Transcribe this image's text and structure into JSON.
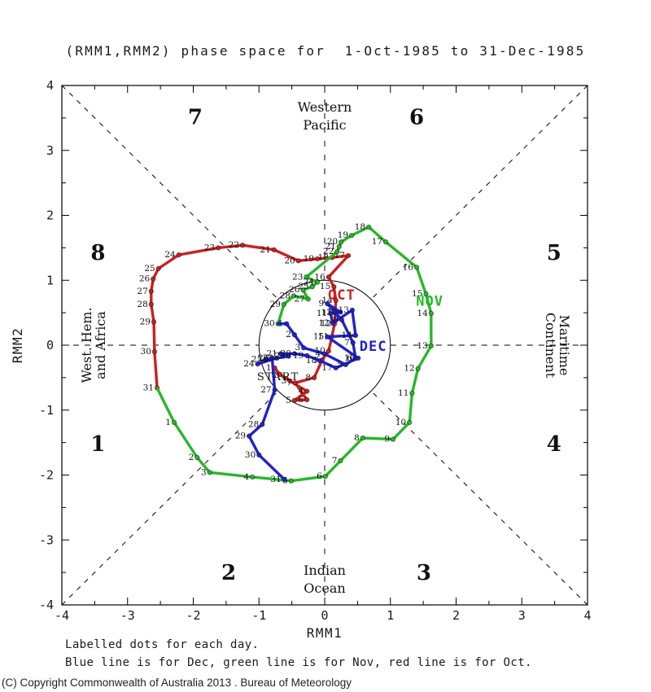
{
  "title": "(RMM1,RMM2) phase space for  1-Oct-1985 to 31-Dec-1985",
  "footer": {
    "line1": "Labelled dots for each day.",
    "line2": "Blue line is for Dec, green line is for Nov, red line is for Oct."
  },
  "copyright": "(C) Copyright Commonwealth of Australia 2013 . Bureau of Meteorology",
  "chart_data": {
    "type": "line",
    "title": "(RMM1,RMM2) phase space for 1-Oct-1985 to 31-Dec-1985",
    "xlabel": "RMM1",
    "ylabel": "RMM2",
    "xlim": [
      -4,
      4
    ],
    "ylim": [
      -4,
      4
    ],
    "xticks": [
      -4,
      -3,
      -2,
      -1,
      0,
      1,
      2,
      3,
      4
    ],
    "yticks": [
      -4,
      -3,
      -2,
      -1,
      0,
      1,
      2,
      3,
      4
    ],
    "minor_tick_step": 0.5,
    "grid": false,
    "unit_circle_radius": 1,
    "colors": {
      "oct": "#cc2020",
      "nov": "#28b828",
      "dec": "#2222cc",
      "axis": "#000000",
      "daytext": "#111111"
    },
    "phase_labels": [
      {
        "n": "1",
        "x": -3.45,
        "y": -1.52
      },
      {
        "n": "2",
        "x": -1.46,
        "y": -3.5
      },
      {
        "n": "3",
        "x": 1.51,
        "y": -3.5
      },
      {
        "n": "4",
        "x": 3.49,
        "y": -1.52
      },
      {
        "n": "5",
        "x": 3.49,
        "y": 1.43
      },
      {
        "n": "6",
        "x": 1.4,
        "y": 3.52
      },
      {
        "n": "7",
        "x": -1.97,
        "y": 3.52
      },
      {
        "n": "8",
        "x": -3.45,
        "y": 1.43
      }
    ],
    "region_labels": {
      "top": [
        "Western",
        "Pacific"
      ],
      "bottom": [
        "Indian",
        "Ocean"
      ],
      "left": [
        "West. Hem.",
        "and Africa"
      ],
      "right": [
        "Maritime",
        "Continent"
      ]
    },
    "start_label": {
      "text": "START",
      "x": -1.03,
      "y": -0.54
    },
    "series": [
      {
        "name": "Oct",
        "color": "#cc2020",
        "tag": {
          "text": "OCT",
          "x": 0.05,
          "y": 0.7
        },
        "points": [
          [
            1,
            -0.76,
            -0.35
          ],
          [
            2,
            -0.68,
            -0.45
          ],
          [
            3,
            -0.53,
            -0.55
          ],
          [
            4,
            -0.27,
            -0.71
          ],
          [
            5,
            -0.46,
            -0.85
          ],
          [
            6,
            -0.27,
            -0.84
          ],
          [
            7,
            -0.45,
            -0.58
          ],
          [
            8,
            -0.16,
            -0.5
          ],
          [
            9,
            -0.04,
            -0.23
          ],
          [
            10,
            0.06,
            -0.09
          ],
          [
            11,
            0.11,
            0.13
          ],
          [
            12,
            0.15,
            0.33
          ],
          [
            13,
            0.16,
            0.5
          ],
          [
            14,
            0.17,
            0.69
          ],
          [
            15,
            0.14,
            0.9
          ],
          [
            16,
            0.06,
            1.05
          ],
          [
            17,
            0.36,
            1.38
          ],
          [
            18,
            0.11,
            1.35
          ],
          [
            19,
            -0.11,
            1.33
          ],
          [
            20,
            -0.4,
            1.3
          ],
          [
            21,
            -0.77,
            1.47
          ],
          [
            22,
            -1.25,
            1.54
          ],
          [
            23,
            -1.62,
            1.5
          ],
          [
            24,
            -2.22,
            1.39
          ],
          [
            25,
            -2.53,
            1.18
          ],
          [
            26,
            -2.61,
            1.02
          ],
          [
            27,
            -2.64,
            0.83
          ],
          [
            28,
            -2.64,
            0.63
          ],
          [
            29,
            -2.6,
            0.36
          ],
          [
            30,
            -2.59,
            -0.1
          ],
          [
            31,
            -2.55,
            -0.66
          ]
        ]
      },
      {
        "name": "Nov",
        "color": "#28b828",
        "tag": {
          "text": "NOV",
          "x": 1.39,
          "y": 0.61
        },
        "points": [
          [
            1,
            -2.29,
            -1.19
          ],
          [
            2,
            -1.94,
            -1.73
          ],
          [
            3,
            -1.75,
            -1.96
          ],
          [
            4,
            -1.1,
            -2.03
          ],
          [
            5,
            -0.51,
            -2.09
          ],
          [
            6,
            0.01,
            -2.02
          ],
          [
            7,
            0.24,
            -1.78
          ],
          [
            8,
            0.58,
            -1.43
          ],
          [
            9,
            1.04,
            -1.45
          ],
          [
            10,
            1.29,
            -1.19
          ],
          [
            11,
            1.33,
            -0.74
          ],
          [
            12,
            1.42,
            -0.36
          ],
          [
            13,
            1.62,
            -0.01
          ],
          [
            14,
            1.62,
            0.49
          ],
          [
            15,
            1.54,
            0.79
          ],
          [
            16,
            1.4,
            1.2
          ],
          [
            17,
            0.93,
            1.59
          ],
          [
            18,
            0.67,
            1.82
          ],
          [
            19,
            0.41,
            1.69
          ],
          [
            20,
            0.25,
            1.59
          ],
          [
            21,
            0.22,
            1.52
          ],
          [
            22,
            0.19,
            1.44
          ],
          [
            23,
            -0.28,
            1.05
          ],
          [
            24,
            -0.11,
            0.97
          ],
          [
            25,
            -0.19,
            0.9
          ],
          [
            26,
            -0.33,
            0.85
          ],
          [
            27,
            -0.25,
            0.71
          ],
          [
            28,
            -0.47,
            0.76
          ],
          [
            29,
            -0.62,
            0.63
          ],
          [
            30,
            -0.71,
            0.33
          ]
        ]
      },
      {
        "name": "Dec",
        "color": "#2222cc",
        "tag": {
          "text": "DEC",
          "x": 0.53,
          "y": -0.09
        },
        "points": [
          [
            1,
            -0.58,
            0.33
          ],
          [
            2,
            -0.46,
            0.16
          ],
          [
            3,
            -0.32,
            -0.04
          ],
          [
            4,
            -0.01,
            -0.13
          ],
          [
            5,
            0.32,
            -0.3
          ],
          [
            6,
            0.47,
            -0.2
          ],
          [
            7,
            0.43,
            0.04
          ],
          [
            8,
            0.26,
            0.39
          ],
          [
            9,
            0.04,
            0.64
          ],
          [
            10,
            0.24,
            0.51
          ],
          [
            11,
            0.09,
            0.49
          ],
          [
            12,
            0.12,
            0.34
          ],
          [
            13,
            0.42,
            0.54
          ],
          [
            14,
            0.47,
            0.15
          ],
          [
            15,
            0.04,
            0.13
          ],
          [
            16,
            0.51,
            -0.2
          ],
          [
            17,
            0.17,
            -0.35
          ],
          [
            18,
            -0.07,
            -0.24
          ],
          [
            19,
            -0.27,
            -0.16
          ],
          [
            20,
            -0.46,
            -0.13
          ],
          [
            21,
            -0.67,
            -0.13
          ],
          [
            22,
            -0.55,
            -0.17
          ],
          [
            23,
            -0.73,
            -0.2
          ],
          [
            24,
            -1.02,
            -0.29
          ],
          [
            25,
            -0.9,
            -0.22
          ],
          [
            26,
            -0.8,
            -0.2
          ],
          [
            27,
            -0.76,
            -0.69
          ],
          [
            28,
            -0.95,
            -1.22
          ],
          [
            29,
            -1.15,
            -1.4
          ],
          [
            30,
            -1.0,
            -1.69
          ],
          [
            31,
            -0.61,
            -2.07
          ]
        ]
      }
    ]
  }
}
